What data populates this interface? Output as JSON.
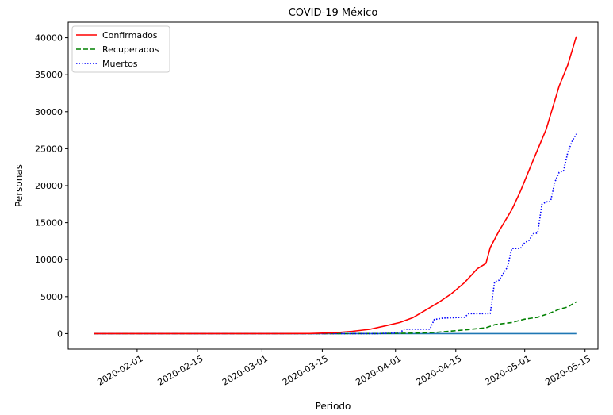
{
  "chart_data": {
    "type": "line",
    "title": "COVID-19 México",
    "xlabel": "Periodo",
    "ylabel": "Personas",
    "xlim": [
      "2020-01-16",
      "2020-05-18"
    ],
    "ylim": [
      -2100,
      42100
    ],
    "x_ticks": [
      "2020-02-01",
      "2020-02-15",
      "2020-03-01",
      "2020-03-15",
      "2020-04-01",
      "2020-04-15",
      "2020-05-01",
      "2020-05-15"
    ],
    "y_ticks": [
      0,
      5000,
      10000,
      15000,
      20000,
      25000,
      30000,
      35000,
      40000
    ],
    "legend_position": "top-left",
    "grid": false,
    "series": [
      {
        "name": "Confirmados",
        "color": "#ff0000",
        "style": "solid",
        "points": [
          [
            "2020-01-22",
            0
          ],
          [
            "2020-02-28",
            0
          ],
          [
            "2020-03-05",
            5
          ],
          [
            "2020-03-12",
            12
          ],
          [
            "2020-03-18",
            118
          ],
          [
            "2020-03-22",
            316
          ],
          [
            "2020-03-26",
            585
          ],
          [
            "2020-03-30",
            1094
          ],
          [
            "2020-04-02",
            1510
          ],
          [
            "2020-04-05",
            2143
          ],
          [
            "2020-04-08",
            3181
          ],
          [
            "2020-04-11",
            4219
          ],
          [
            "2020-04-14",
            5399
          ],
          [
            "2020-04-17",
            6875
          ],
          [
            "2020-04-20",
            8772
          ],
          [
            "2020-04-22",
            9501
          ],
          [
            "2020-04-23",
            11633
          ],
          [
            "2020-04-25",
            13842
          ],
          [
            "2020-04-28",
            16752
          ],
          [
            "2020-04-30",
            19224
          ],
          [
            "2020-05-03",
            23471
          ],
          [
            "2020-05-06",
            27634
          ],
          [
            "2020-05-09",
            33460
          ],
          [
            "2020-05-11",
            36327
          ],
          [
            "2020-05-13",
            40186
          ]
        ]
      },
      {
        "name": "Recuperados",
        "color": "#008000",
        "style": "dashed",
        "points": [
          [
            "2020-01-22",
            0
          ],
          [
            "2020-03-20",
            4
          ],
          [
            "2020-03-27",
            17
          ],
          [
            "2020-04-01",
            35
          ],
          [
            "2020-04-06",
            70
          ],
          [
            "2020-04-10",
            150
          ],
          [
            "2020-04-14",
            350
          ],
          [
            "2020-04-18",
            550
          ],
          [
            "2020-04-22",
            800
          ],
          [
            "2020-04-24",
            1200
          ],
          [
            "2020-04-28",
            1500
          ],
          [
            "2020-05-01",
            1950
          ],
          [
            "2020-05-04",
            2200
          ],
          [
            "2020-05-07",
            2800
          ],
          [
            "2020-05-09",
            3300
          ],
          [
            "2020-05-11",
            3600
          ],
          [
            "2020-05-13",
            4300
          ]
        ]
      },
      {
        "name": "Muertos",
        "color": "#0000ff",
        "style": "dotted",
        "points": [
          [
            "2020-01-22",
            0
          ],
          [
            "2020-03-28",
            0
          ],
          [
            "2020-04-02",
            100
          ],
          [
            "2020-04-03",
            600
          ],
          [
            "2020-04-09",
            600
          ],
          [
            "2020-04-10",
            1900
          ],
          [
            "2020-04-12",
            2100
          ],
          [
            "2020-04-17",
            2200
          ],
          [
            "2020-04-18",
            2700
          ],
          [
            "2020-04-23",
            2700
          ],
          [
            "2020-04-24",
            7000
          ],
          [
            "2020-04-25",
            7200
          ],
          [
            "2020-04-27",
            9000
          ],
          [
            "2020-04-28",
            11500
          ],
          [
            "2020-04-30",
            11500
          ],
          [
            "2020-05-01",
            12300
          ],
          [
            "2020-05-02",
            12600
          ],
          [
            "2020-05-03",
            13500
          ],
          [
            "2020-05-04",
            13600
          ],
          [
            "2020-05-05",
            17500
          ],
          [
            "2020-05-06",
            17800
          ],
          [
            "2020-05-07",
            17900
          ],
          [
            "2020-05-08",
            20500
          ],
          [
            "2020-05-09",
            21800
          ],
          [
            "2020-05-10",
            22000
          ],
          [
            "2020-05-11",
            24500
          ],
          [
            "2020-05-12",
            26000
          ],
          [
            "2020-05-13",
            27000
          ]
        ]
      },
      {
        "name": "",
        "color": "#1f77b4",
        "style": "solid",
        "points": [
          [
            "2020-01-22",
            0
          ],
          [
            "2020-05-13",
            0
          ]
        ]
      }
    ]
  }
}
